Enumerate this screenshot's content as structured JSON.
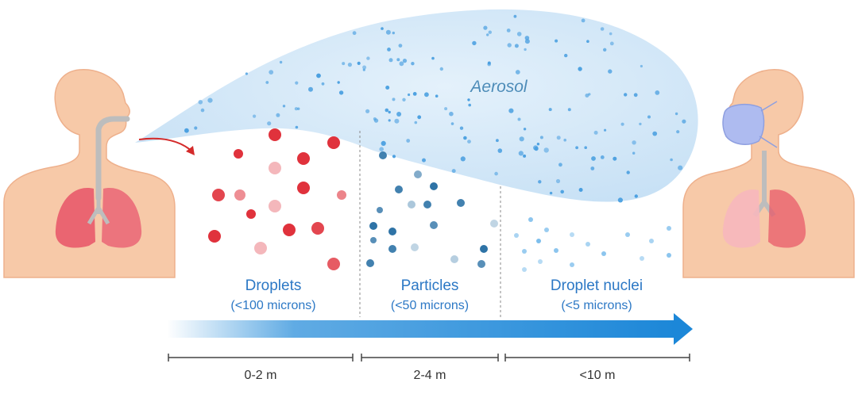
{
  "aerosol": {
    "label": "Aerosol"
  },
  "zones": [
    {
      "name": "Droplets",
      "size": "(<100 microns)",
      "distance": "0-2 m"
    },
    {
      "name": "Particles",
      "size": "(<50 microns)",
      "distance": "2-4 m"
    },
    {
      "name": "Droplet nuclei",
      "size": "(<5 microns)",
      "distance": "<10 m"
    }
  ],
  "colors": {
    "skin": "#f7c9a8",
    "skin_edge": "#eeb08c",
    "lung_left": "#e85a6a",
    "lung_right": "#f6b7bd",
    "cloud": "#cfe6f8",
    "aerosol_dot": "#4a9fe0",
    "droplet": "#e0323c",
    "particle": "#2e73a6",
    "nuclei": "#6fb7ea",
    "arrow": "#1c87d8",
    "label_blue": "#2c78c5",
    "mask": "#aebbf0"
  }
}
